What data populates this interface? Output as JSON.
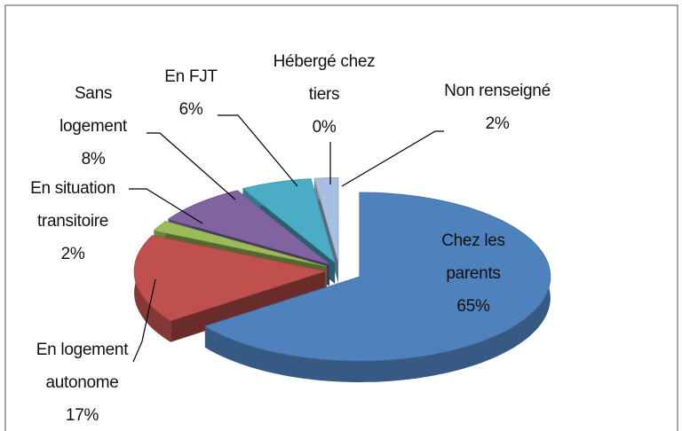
{
  "chart_data": {
    "type": "pie3d",
    "categories": [
      "Chez les parents",
      "En logement autonome",
      "En situation transitoire",
      "Sans logement",
      "En FJT",
      "Hébergé chez tiers",
      "Non renseigné"
    ],
    "values": [
      65,
      17,
      2,
      8,
      6,
      0,
      2
    ],
    "value_labels": [
      "65%",
      "17%",
      "2%",
      "8%",
      "6%",
      "0%",
      "2%"
    ],
    "colors": [
      "#4f81bd",
      "#c0504d",
      "#9bbb59",
      "#8064a2",
      "#4bacc6",
      "#c0712d",
      "#a7bfe0"
    ]
  }
}
